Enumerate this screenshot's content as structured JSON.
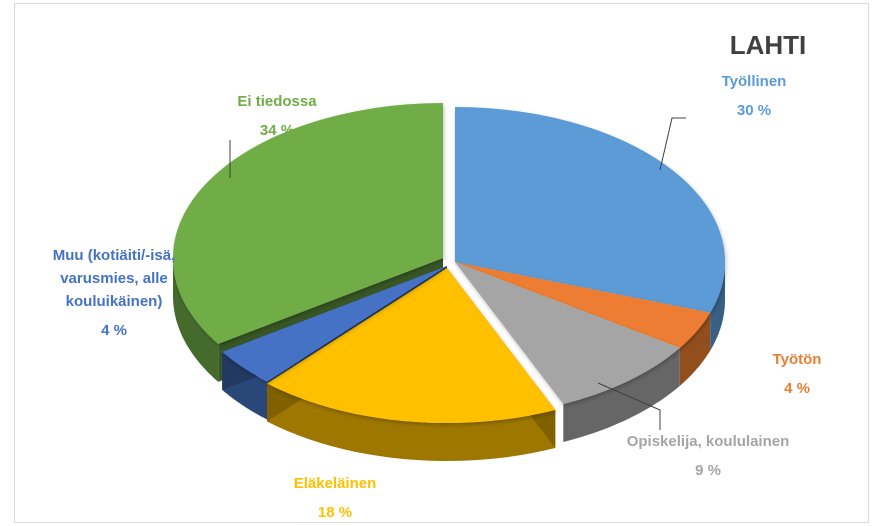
{
  "chart_data": {
    "type": "pie",
    "title": "LAHTI",
    "unit": "%",
    "slices": [
      {
        "label": "Työllinen",
        "value": 30,
        "value_label": "30 %",
        "color": "#5b9bd5"
      },
      {
        "label": "Työtön",
        "value": 4,
        "value_label": "4 %",
        "color": "#ed7d31"
      },
      {
        "label": "Opiskelija, koululainen",
        "value": 9,
        "value_label": "9 %",
        "color": "#a5a5a5"
      },
      {
        "label": "Eläkeläinen",
        "value": 18,
        "value_label": "18 %",
        "color": "#ffc000"
      },
      {
        "label": "Muu (kotiäiti/-isä, varusmies, alle kouluikäinen)",
        "value": 4,
        "value_label": "4 %",
        "color": "#4472c4"
      },
      {
        "label": "Ei tiedossa",
        "value": 34,
        "value_label": "34 %",
        "color": "#70ad47"
      }
    ],
    "style": "3d-exploded",
    "legend": "none"
  }
}
